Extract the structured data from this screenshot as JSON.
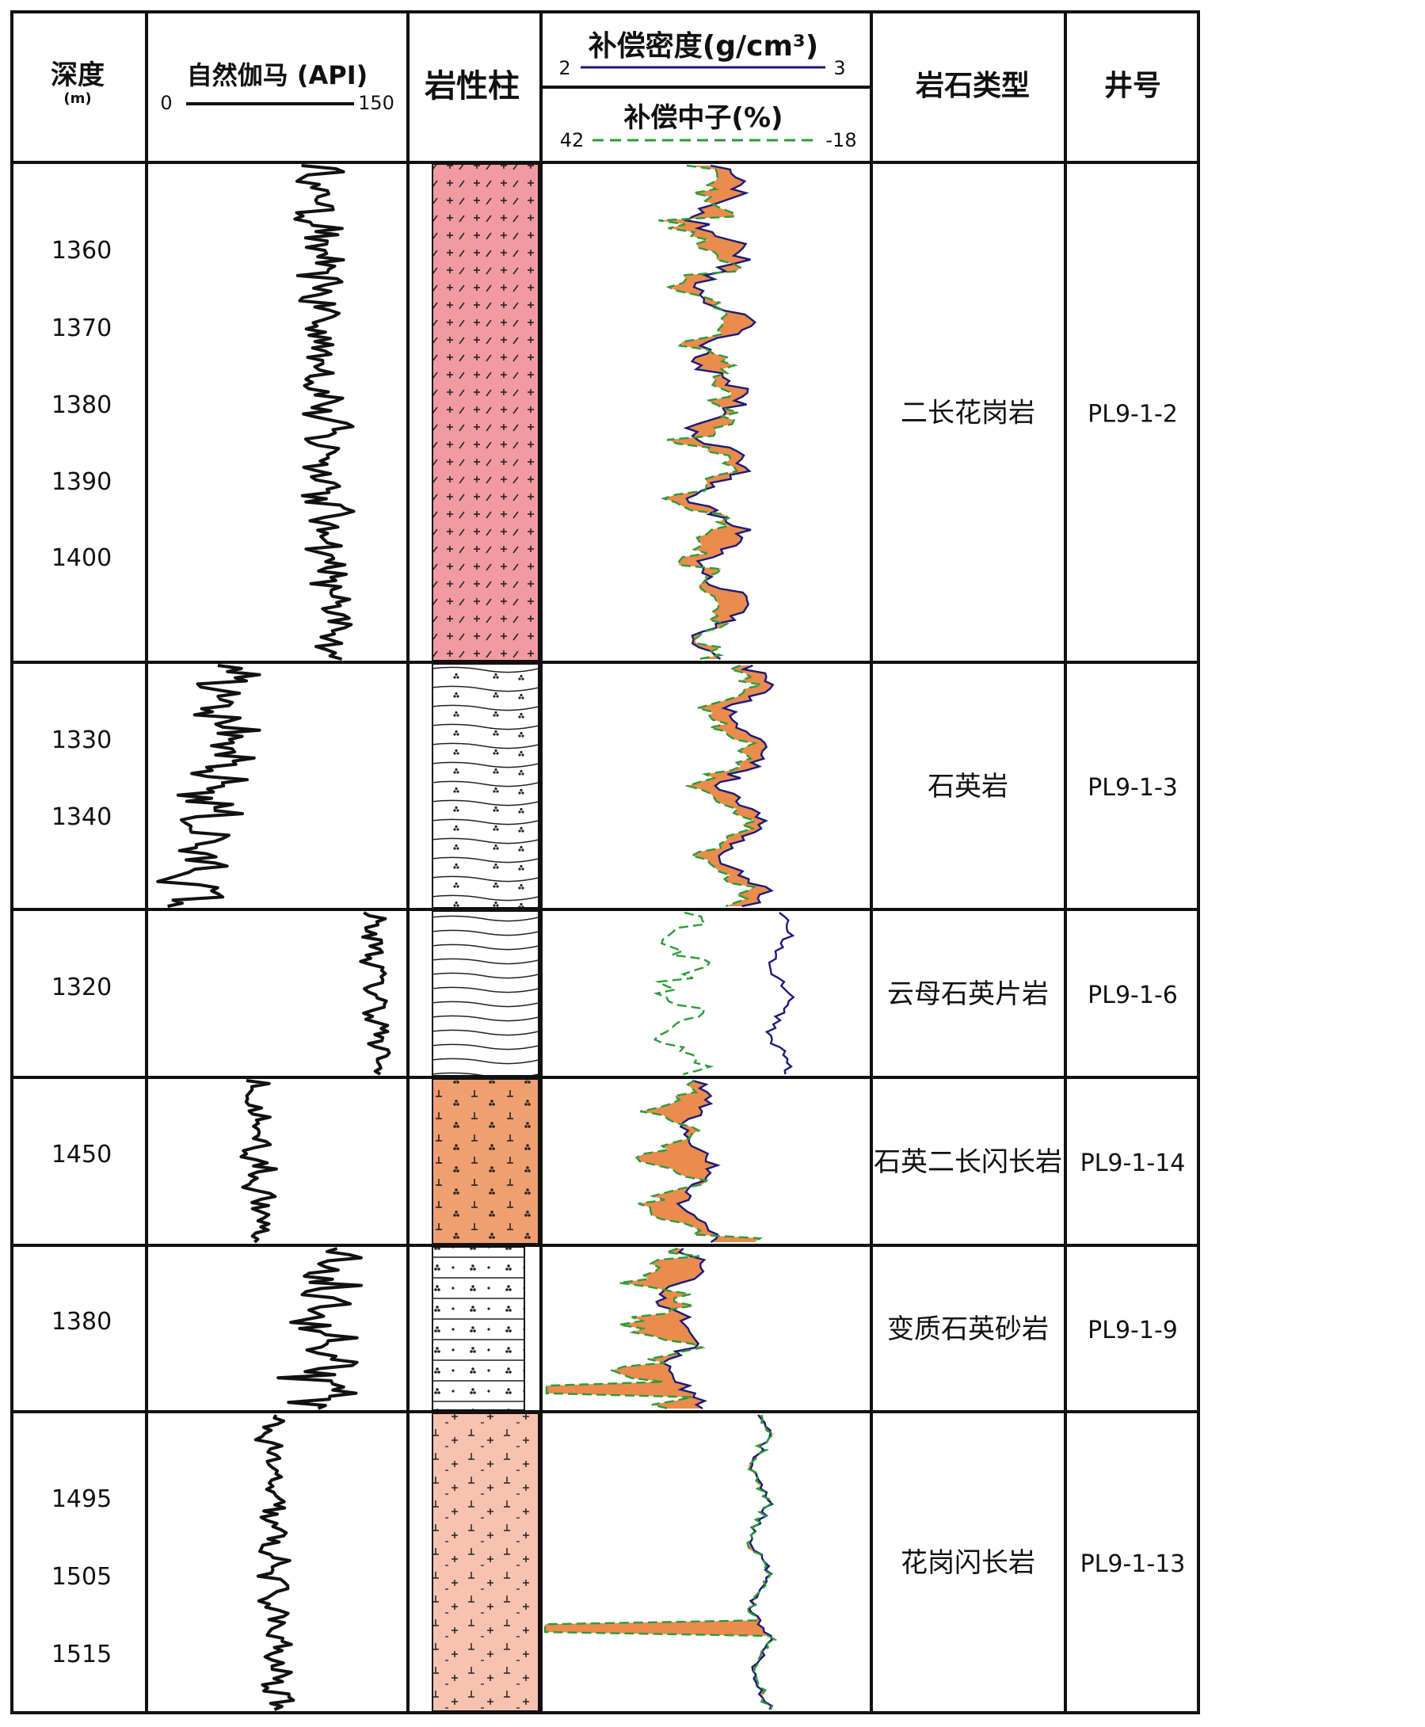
{
  "headers": {
    "depth": "深度",
    "depth_unit": "(m)",
    "gamma": "自然伽马 (API)",
    "gamma_min": "0",
    "gamma_max": "150",
    "lithology": "岩性柱",
    "density": "补偿密度(g/cm³)",
    "density_min": "2",
    "density_max": "3",
    "neutron": "补偿中子(%)",
    "neutron_min": "42",
    "neutron_max": "-18",
    "rock_type": "岩石类型",
    "well": "井号"
  },
  "colors": {
    "grid": "#111111",
    "gamma_curve": "#111111",
    "density_curve": "#1a1a7a",
    "neutron_curve": "#2e9a3a",
    "fill": "#e8803a",
    "granite_pink": "#f19aa2",
    "orange_diorite": "#f0a070",
    "light_pink": "#f7c3b0"
  },
  "sections": [
    {
      "rock_type": "二长花岗岩",
      "well": "PL9-1-2",
      "depths": [
        "1360",
        "1370",
        "1380",
        "1390",
        "1400"
      ],
      "pattern": "granite-pink-icon"
    },
    {
      "rock_type": "石英岩",
      "well": "PL9-1-3",
      "depths": [
        "1330",
        "1340"
      ],
      "pattern": "quartzite-icon"
    },
    {
      "rock_type": "云母石英片岩",
      "well": "PL9-1-6",
      "depths": [
        "1320"
      ],
      "pattern": "schist-icon"
    },
    {
      "rock_type": "石英二长闪长岩",
      "well": "PL9-1-14",
      "depths": [
        "1450"
      ],
      "pattern": "monzodiorite-icon"
    },
    {
      "rock_type": "变质石英砂岩",
      "well": "PL9-1-9",
      "depths": [
        "1380"
      ],
      "pattern": "sandstone-icon"
    },
    {
      "rock_type": "花岗闪长岩",
      "well": "PL9-1-13",
      "depths": [
        "1495",
        "1505",
        "1515"
      ],
      "pattern": "granodiorite-icon"
    }
  ]
}
